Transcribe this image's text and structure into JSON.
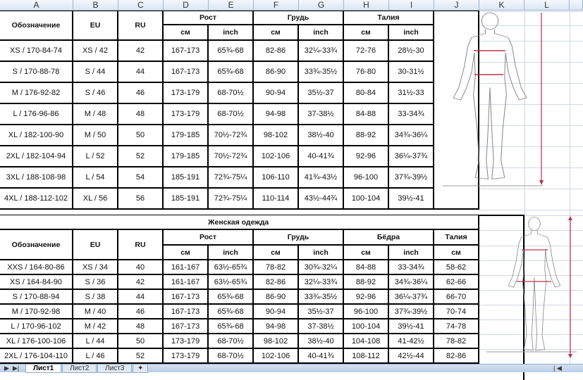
{
  "columns": [
    "A",
    "B",
    "C",
    "D",
    "E",
    "F",
    "G",
    "H",
    "I",
    "J",
    "K",
    "L"
  ],
  "sheet_tabs": [
    {
      "label": "Лист1",
      "active": true
    },
    {
      "label": "Лист2",
      "active": false
    },
    {
      "label": "Лист3",
      "active": false
    }
  ],
  "colors": {
    "grid": "#d0d7e5",
    "border": "#000000",
    "arrow": "#c0304a",
    "figure_outline": "#8a8a8a"
  },
  "men_table": {
    "headers": {
      "designation": "Обозначение",
      "eu": "EU",
      "ru": "RU",
      "height": "Рост",
      "chest": "Грудь",
      "waist": "Талия",
      "cm": "см",
      "inch": "inch"
    },
    "rows": [
      [
        "XS / 170-84-74",
        "XS / 42",
        "42",
        "167-173",
        "65¾-68",
        "82-86",
        "32¼-33¾",
        "72-76",
        "28½-30"
      ],
      [
        "S / 170-88-78",
        "S / 44",
        "44",
        "167-173",
        "65¾-68",
        "86-90",
        "33¾-35½",
        "76-80",
        "30-31½"
      ],
      [
        "M / 176-92-82",
        "S / 46",
        "46",
        "173-179",
        "68-70½",
        "90-94",
        "35½-37",
        "80-84",
        "31½-33"
      ],
      [
        "L / 176-96-86",
        "M / 48",
        "48",
        "173-179",
        "68-70½",
        "94-98",
        "37-38½",
        "84-88",
        "33-34¾"
      ],
      [
        "XL / 182-100-90",
        "M / 50",
        "50",
        "179-185",
        "70½-72¾",
        "98-102",
        "38½-40",
        "88-92",
        "34¾-36¼"
      ],
      [
        "2XL / 182-104-94",
        "L / 52",
        "52",
        "179-185",
        "70½-72¾",
        "102-106",
        "40-41¾",
        "92-96",
        "36¼-37¾"
      ],
      [
        "3XL / 188-108-98",
        "L / 54",
        "54",
        "185-191",
        "72¾-75¼",
        "106-110",
        "41¾-43½",
        "96-100",
        "37¾-39½"
      ],
      [
        "4XL / 188-112-102",
        "XL / 56",
        "56",
        "185-191",
        "72¾-75¼",
        "110-114",
        "43½-44¾",
        "100-104",
        "39½-41"
      ]
    ]
  },
  "women_table": {
    "title": "Женская одежда",
    "headers": {
      "designation": "Обозначение",
      "eu": "EU",
      "ru": "RU",
      "height": "Рост",
      "chest": "Грудь",
      "hips": "Бёдра",
      "waist": "Талия",
      "cm": "см",
      "inch": "inch"
    },
    "rows": [
      [
        "XXS / 164-80-86",
        "XS / 34",
        "40",
        "161-167",
        "63½-65¾",
        "78-82",
        "30¾-32¼",
        "84-88",
        "33-34¾",
        "58-62"
      ],
      [
        "XS / 164-84-90",
        "S / 36",
        "42",
        "161-167",
        "63½-65¾",
        "82-86",
        "32¼-33¾",
        "88-92",
        "34¾-36¼",
        "62-66"
      ],
      [
        "S / 170-88-94",
        "S / 38",
        "44",
        "167-173",
        "65¾-68",
        "86-90",
        "33¾-35½",
        "92-96",
        "36¼-37¾",
        "66-70"
      ],
      [
        "M / 170-92-98",
        "M / 40",
        "46",
        "167-173",
        "65¾-68",
        "90-94",
        "35½-37",
        "96-100",
        "37¾-39½",
        "70-74"
      ],
      [
        "L / 170-96-102",
        "M / 42",
        "48",
        "167-173",
        "65¾-68",
        "94-98",
        "37-38½",
        "100-104",
        "39½-41",
        "74-78"
      ],
      [
        "XL / 176-100-106",
        "L / 44",
        "50",
        "173-179",
        "68-70½",
        "98-102",
        "38½-40",
        "104-108",
        "41-42½",
        "78-82"
      ],
      [
        "2XL / 176-104-110",
        "L / 46",
        "52",
        "173-179",
        "68-70½",
        "102-106",
        "40-41¾",
        "108-112",
        "42½-44",
        "82-86"
      ]
    ]
  },
  "figures": [
    {
      "icon": "male-body-measurement-figure"
    },
    {
      "icon": "female-body-measurement-figure"
    }
  ]
}
